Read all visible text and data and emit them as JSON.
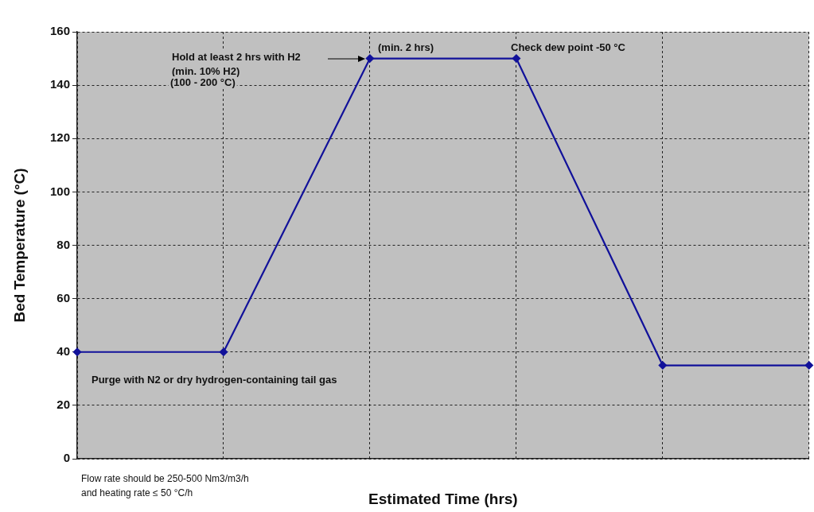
{
  "chart_data": {
    "type": "line",
    "xlabel": "Estimated Time (hrs)",
    "ylabel": "Bed Temperature (°C)",
    "categories": [
      null,
      null,
      null,
      null,
      null,
      null
    ],
    "series": [
      {
        "color": "#11119a",
        "values": [
          40,
          40,
          150,
          150,
          35,
          35
        ]
      }
    ],
    "ylim": [
      0,
      160
    ],
    "yticks": [
      0,
      20,
      40,
      60,
      80,
      100,
      120,
      140,
      160
    ],
    "grid": true,
    "legend": false,
    "marker": "diamond",
    "line_style": "solid",
    "annotations": [
      "Hold at least 2 hrs with H2",
      "(min. 10% H2)",
      "(100 - 200 °C)",
      "(min. 2 hrs)",
      "Check dew point -50 °C",
      "Purge with N2 or dry hydrogen-containing tail gas",
      "Flow rate should be 250-500 Nm3/m3/h",
      "and heating rate ≤ 50 °C/h"
    ]
  }
}
